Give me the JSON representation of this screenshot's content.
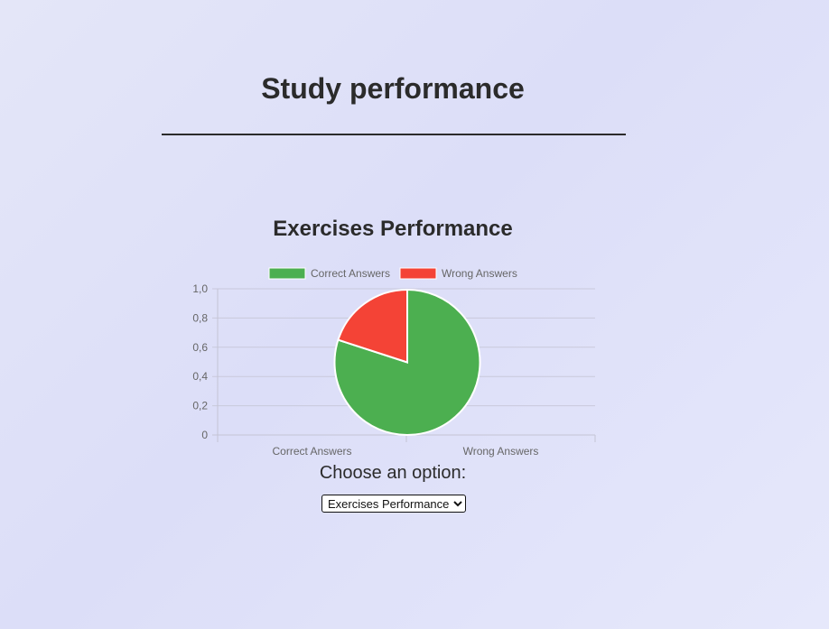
{
  "page": {
    "title": "Study performance"
  },
  "section": {
    "title": "Exercises Performance"
  },
  "chart_data": {
    "type": "pie",
    "title": "",
    "categories": [
      "Correct Answers",
      "Wrong Answers"
    ],
    "values": [
      0.8,
      0.2
    ],
    "colors": [
      "#4caf50",
      "#f44336"
    ],
    "legend": {
      "position": "top",
      "entries": [
        "Correct Answers",
        "Wrong Answers"
      ]
    },
    "y_ticks": [
      "0",
      "0,2",
      "0,4",
      "0,6",
      "0,8",
      "1,0"
    ],
    "x_ticks": [
      "Correct Answers",
      "Wrong Answers"
    ],
    "ylim": [
      0,
      1
    ],
    "grid": true
  },
  "selector": {
    "label": "Choose an option:",
    "selected": "Exercises Performance"
  }
}
